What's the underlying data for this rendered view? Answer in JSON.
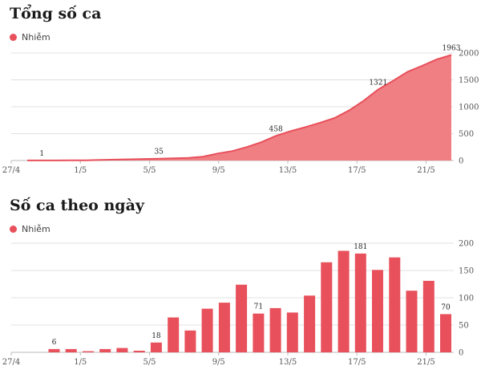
{
  "colors": {
    "accent": "#e8505b",
    "area_fill": "#f07f84",
    "grid": "#e0e0e0",
    "axis": "#bbbbbb"
  },
  "chart_data": [
    {
      "type": "area",
      "title": "Tổng số ca",
      "legend": {
        "position": "top-left",
        "entries": [
          "Nhiễm"
        ]
      },
      "series": [
        {
          "name": "Nhiễm",
          "values": [
            1,
            1,
            2,
            3,
            5,
            11,
            17,
            22,
            28,
            35,
            40,
            50,
            70,
            130,
            175,
            250,
            340,
            458,
            545,
            620,
            700,
            790,
            930,
            1110,
            1321,
            1480,
            1650,
            1760,
            1880,
            1963
          ]
        }
      ],
      "x_ticks": [
        "27/4",
        "1/5",
        "5/5",
        "9/5",
        "13/5",
        "17/5",
        "21/5"
      ],
      "y_ticks": [
        0,
        500,
        1000,
        1500,
        2000
      ],
      "ylim": [
        0,
        2000
      ],
      "y_axis_side": "right",
      "grid": true,
      "data_labels": [
        {
          "index": 1,
          "text": "1"
        },
        {
          "index": 9,
          "text": "35"
        },
        {
          "index": 17,
          "text": "458"
        },
        {
          "index": 24,
          "text": "1321"
        },
        {
          "index": 29,
          "text": "1963"
        }
      ]
    },
    {
      "type": "bar",
      "title": "Số ca theo ngày",
      "legend": {
        "position": "top-left",
        "entries": [
          "Nhiễm"
        ]
      },
      "series": [
        {
          "name": "Nhiễm",
          "values": [
            0,
            0,
            6,
            6,
            2,
            6,
            8,
            3,
            18,
            64,
            40,
            80,
            91,
            124,
            71,
            81,
            73,
            104,
            165,
            186,
            181,
            151,
            174,
            113,
            131,
            70
          ]
        }
      ],
      "x_ticks": [
        "27/4",
        "1/5",
        "5/5",
        "9/5",
        "13/5",
        "17/5",
        "21/5"
      ],
      "y_ticks": [
        0,
        50,
        100,
        150,
        200
      ],
      "ylim": [
        0,
        200
      ],
      "y_axis_side": "right",
      "grid": true,
      "data_labels": [
        {
          "index": 2,
          "text": "6"
        },
        {
          "index": 8,
          "text": "18"
        },
        {
          "index": 14,
          "text": "71"
        },
        {
          "index": 20,
          "text": "181"
        },
        {
          "index": 25,
          "text": "70"
        }
      ]
    }
  ]
}
